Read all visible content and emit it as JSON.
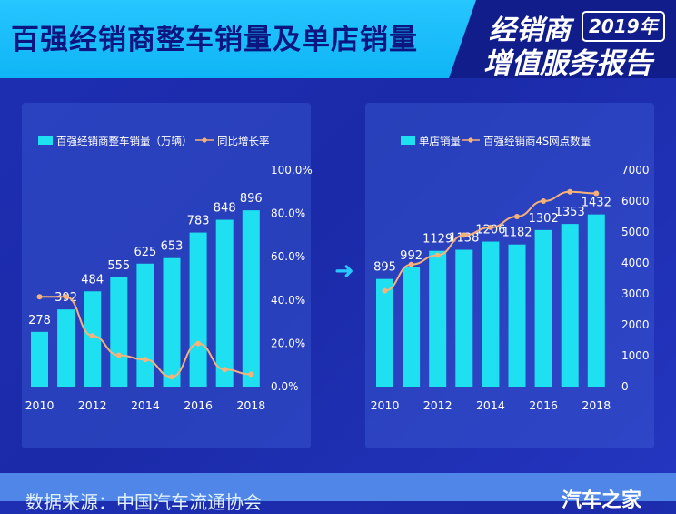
{
  "header": {
    "title": "百强经销商整车销量及单店销量",
    "badge_line1": "经销商",
    "badge_year": "2019年",
    "badge_line2": "增值服务报告"
  },
  "footer": {
    "source": "数据来源：中国汽车流通协会",
    "brand": "汽车之家"
  },
  "colors": {
    "bar": "#1ee0f0",
    "line": "#f7b27a",
    "axis_text": "#ffffff"
  },
  "chart_data": [
    {
      "type": "bar",
      "categories": [
        "2010",
        "2011",
        "2012",
        "2013",
        "2014",
        "2015",
        "2016",
        "2017",
        "2018"
      ],
      "x_tick_labels": [
        "2010",
        "",
        "2012",
        "",
        "2014",
        "",
        "2016",
        "",
        "2018"
      ],
      "series": [
        {
          "name": "百强经销商整车销量（万辆）",
          "type": "bar",
          "values": [
            278,
            392,
            484,
            555,
            625,
            653,
            783,
            848,
            896
          ]
        },
        {
          "name": "同比增长率",
          "type": "line",
          "axis": "right",
          "values": [
            41.5,
            41.5,
            23.5,
            14.5,
            12.5,
            4.5,
            19.9,
            7.9,
            5.7
          ]
        }
      ],
      "y_right_ticks": [
        "100.0%",
        "80.0%",
        "60.0%",
        "40.0%",
        "20.0%",
        "0.0%"
      ],
      "y_right_range": [
        0,
        100
      ],
      "y_left_range": [
        0,
        1100
      ],
      "legend_position": "top"
    },
    {
      "type": "bar",
      "categories": [
        "2010",
        "2011",
        "2012",
        "2013",
        "2014",
        "2015",
        "2016",
        "2017",
        "2018"
      ],
      "x_tick_labels": [
        "2010",
        "",
        "2012",
        "",
        "2014",
        "",
        "2016",
        "",
        "2018"
      ],
      "series": [
        {
          "name": "单店销量",
          "type": "bar",
          "values": [
            895,
            992,
            1129,
            1138,
            1206,
            1182,
            1302,
            1353,
            1432
          ]
        },
        {
          "name": "百强经销商4S网点数量",
          "type": "line",
          "axis": "right",
          "values": [
            3100,
            3950,
            4250,
            4900,
            5150,
            5500,
            6000,
            6300,
            6250
          ]
        }
      ],
      "y_right_ticks": [
        "7000",
        "6000",
        "5000",
        "4000",
        "3000",
        "2000",
        "1000",
        "0"
      ],
      "y_right_range": [
        0,
        7000
      ],
      "y_left_range": [
        0,
        1800
      ],
      "legend_position": "top"
    }
  ]
}
